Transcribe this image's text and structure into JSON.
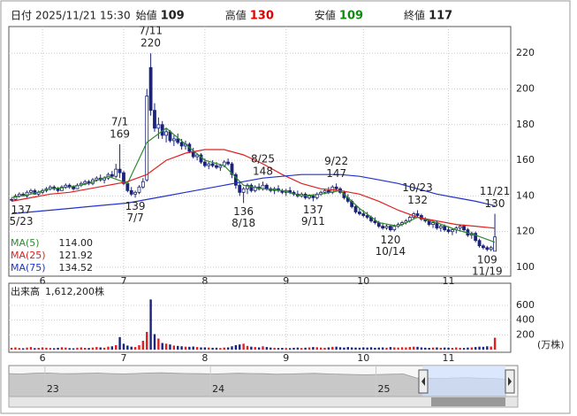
{
  "header": {
    "items": [
      {
        "label": "日付",
        "value": "2025/11/21 15:30"
      },
      {
        "label": "始値",
        "value": 109
      },
      {
        "label": "高値",
        "value": 130,
        "color": "#e00000"
      },
      {
        "label": "安値",
        "value": 109,
        "color": "#108a10"
      },
      {
        "label": "終値",
        "value": 117
      }
    ]
  },
  "chart_data": [
    {
      "type": "candlestick",
      "up_color": "#ffffff",
      "down_color": "#1a237e",
      "edge_color": "#1a237e",
      "ylim": [
        95,
        235
      ],
      "yticks": [
        100,
        120,
        140,
        160,
        180,
        200,
        220
      ],
      "grid": true,
      "xlim": [
        -0.7,
        129.1
      ],
      "xticks": [
        {
          "value": 8,
          "label": "6"
        },
        {
          "value": 29,
          "label": "7"
        },
        {
          "value": 50,
          "label": "8"
        },
        {
          "value": 71,
          "label": "9"
        },
        {
          "value": 91,
          "label": "10"
        },
        {
          "value": 113,
          "label": "11"
        }
      ],
      "ohlc": [
        [
          138,
          139,
          137,
          138
        ],
        [
          138,
          141,
          137.5,
          140
        ],
        [
          140,
          142,
          139,
          141
        ],
        [
          141,
          142,
          140,
          140
        ],
        [
          140,
          143,
          139,
          142
        ],
        [
          142,
          144,
          141,
          143
        ],
        [
          143,
          144,
          141,
          141
        ],
        [
          141,
          143,
          140,
          142
        ],
        [
          142,
          144,
          141,
          143
        ],
        [
          143,
          145,
          142,
          144
        ],
        [
          144,
          146,
          143,
          145
        ],
        [
          145,
          146,
          143,
          144
        ],
        [
          144,
          145,
          142,
          143
        ],
        [
          143,
          146,
          143,
          145
        ],
        [
          145,
          147,
          144,
          146
        ],
        [
          146,
          147,
          144,
          145
        ],
        [
          145,
          146,
          143,
          144
        ],
        [
          144,
          147,
          144,
          146
        ],
        [
          146,
          148,
          145,
          147
        ],
        [
          147,
          149,
          146,
          148
        ],
        [
          148,
          149,
          146,
          147
        ],
        [
          147,
          150,
          146,
          149
        ],
        [
          149,
          151,
          148,
          150
        ],
        [
          150,
          152,
          148,
          149
        ],
        [
          149,
          151,
          147,
          150
        ],
        [
          150,
          153,
          149,
          152
        ],
        [
          152,
          154,
          150,
          151
        ],
        [
          151,
          158,
          150,
          155
        ],
        [
          155,
          169,
          150,
          153
        ],
        [
          153,
          154,
          146,
          147
        ],
        [
          147,
          148,
          142,
          143
        ],
        [
          143,
          145,
          140,
          141
        ],
        [
          141,
          143,
          139,
          142
        ],
        [
          142,
          146,
          141,
          145
        ],
        [
          145,
          150,
          144,
          148
        ],
        [
          149,
          200,
          148,
          196
        ],
        [
          212,
          220,
          185,
          188
        ],
        [
          188,
          192,
          176,
          178
        ],
        [
          178,
          184,
          172,
          180
        ],
        [
          180,
          182,
          172,
          174
        ],
        [
          174,
          178,
          170,
          176
        ],
        [
          176,
          177,
          170,
          171
        ],
        [
          171,
          174,
          168,
          172
        ],
        [
          172,
          175,
          169,
          170
        ],
        [
          170,
          172,
          166,
          168
        ],
        [
          168,
          171,
          166,
          169
        ],
        [
          169,
          170,
          164,
          165
        ],
        [
          165,
          167,
          161,
          162
        ],
        [
          162,
          164,
          160,
          163
        ],
        [
          163,
          164,
          158,
          159
        ],
        [
          159,
          161,
          156,
          157
        ],
        [
          157,
          159,
          155,
          158
        ],
        [
          158,
          160,
          156,
          157
        ],
        [
          157,
          159,
          155,
          156
        ],
        [
          156,
          158,
          154,
          157
        ],
        [
          157,
          160,
          156,
          159
        ],
        [
          159,
          161,
          157,
          158
        ],
        [
          158,
          159,
          150,
          152
        ],
        [
          152,
          153,
          144,
          146
        ],
        [
          146,
          148,
          140,
          142
        ],
        [
          142,
          145,
          136,
          144
        ],
        [
          144,
          147,
          141,
          146
        ],
        [
          146,
          147,
          142,
          143
        ],
        [
          143,
          146,
          142,
          145
        ],
        [
          145,
          147,
          143,
          144
        ],
        [
          144,
          148,
          143,
          146
        ],
        [
          146,
          147,
          143,
          144
        ],
        [
          144,
          145,
          142,
          143
        ],
        [
          143,
          145,
          141,
          144
        ],
        [
          144,
          146,
          142,
          143
        ],
        [
          143,
          144,
          141,
          142
        ],
        [
          142,
          144,
          140,
          143
        ],
        [
          143,
          145,
          141,
          142
        ],
        [
          142,
          143,
          140,
          141
        ],
        [
          141,
          143,
          139,
          140
        ],
        [
          140,
          142,
          139,
          141
        ],
        [
          141,
          142,
          138,
          139
        ],
        [
          139,
          141,
          138,
          140
        ],
        [
          140,
          141,
          137,
          139
        ],
        [
          139,
          142,
          138,
          141
        ],
        [
          141,
          143,
          140,
          142
        ],
        [
          142,
          144,
          141,
          143
        ],
        [
          143,
          145,
          141,
          142
        ],
        [
          142,
          146,
          141,
          145
        ],
        [
          145,
          147,
          143,
          144
        ],
        [
          144,
          145,
          141,
          142
        ],
        [
          142,
          143,
          138,
          139
        ],
        [
          139,
          141,
          136,
          137
        ],
        [
          137,
          138,
          133,
          134
        ],
        [
          134,
          135,
          130,
          131
        ],
        [
          131,
          133,
          129,
          130
        ],
        [
          130,
          132,
          128,
          129
        ],
        [
          129,
          131,
          127,
          128
        ],
        [
          128,
          129,
          125,
          126
        ],
        [
          126,
          128,
          124,
          125
        ],
        [
          125,
          126,
          122,
          123
        ],
        [
          123,
          125,
          121,
          122
        ],
        [
          122,
          124,
          121,
          123
        ],
        [
          123,
          124,
          120,
          121
        ],
        [
          121,
          124,
          120,
          123
        ],
        [
          123,
          125,
          122,
          124
        ],
        [
          124,
          126,
          123,
          125
        ],
        [
          125,
          127,
          124,
          126
        ],
        [
          126,
          129,
          125,
          128
        ],
        [
          128,
          131,
          127,
          130
        ],
        [
          130,
          132,
          128,
          129
        ],
        [
          129,
          130,
          126,
          127
        ],
        [
          127,
          128,
          125,
          126
        ],
        [
          126,
          127,
          123,
          124
        ],
        [
          124,
          126,
          122,
          125
        ],
        [
          125,
          126,
          121,
          122
        ],
        [
          122,
          124,
          120,
          123
        ],
        [
          123,
          124,
          120,
          121
        ],
        [
          121,
          123,
          119,
          120
        ],
        [
          120,
          122,
          118,
          121
        ],
        [
          121,
          123,
          119,
          122
        ],
        [
          122,
          124,
          120,
          123
        ],
        [
          123,
          124,
          120,
          121
        ],
        [
          121,
          122,
          117,
          118
        ],
        [
          118,
          120,
          116,
          119
        ],
        [
          119,
          120,
          114,
          115
        ],
        [
          115,
          116,
          111,
          112
        ],
        [
          112,
          113,
          110,
          111
        ],
        [
          111,
          112,
          109,
          110
        ],
        [
          110,
          112,
          109,
          111
        ],
        [
          109,
          130,
          109,
          117
        ]
      ],
      "series": [
        {
          "name": "MA(5)",
          "color": "#2e8b2e",
          "current": "114.00",
          "x": [
            0,
            5,
            10,
            15,
            20,
            25,
            30,
            35,
            40,
            45,
            50,
            55,
            60,
            65,
            70,
            75,
            80,
            85,
            90,
            95,
            100,
            105,
            110,
            115,
            120,
            125
          ],
          "values": [
            139,
            141,
            144,
            145,
            147,
            151,
            147,
            170,
            178,
            169,
            160,
            157,
            146,
            144,
            143,
            140,
            141,
            143,
            133,
            125,
            123,
            128,
            125,
            121,
            118,
            114
          ]
        },
        {
          "name": "MA(25)",
          "color": "#e02020",
          "current": "121.92",
          "x": [
            0,
            5,
            10,
            15,
            20,
            25,
            30,
            35,
            40,
            45,
            50,
            55,
            60,
            65,
            70,
            75,
            80,
            85,
            90,
            95,
            100,
            105,
            110,
            115,
            120,
            125
          ],
          "values": [
            137,
            139,
            141,
            142,
            144,
            146,
            148,
            152,
            160,
            164,
            166,
            166,
            163,
            158,
            152,
            147,
            144,
            143,
            141,
            137,
            132,
            128,
            126,
            124,
            123,
            121.92
          ]
        },
        {
          "name": "MA(75)",
          "color": "#2233cc",
          "current": "134.52",
          "x": [
            0,
            5,
            10,
            15,
            20,
            25,
            30,
            35,
            40,
            45,
            50,
            55,
            60,
            65,
            70,
            75,
            80,
            85,
            90,
            95,
            100,
            105,
            110,
            115,
            120,
            125
          ],
          "values": [
            130,
            131,
            132,
            133,
            134,
            135,
            136,
            138,
            140,
            142,
            144,
            146,
            148,
            150,
            151,
            152,
            152,
            152,
            151,
            149,
            147,
            144,
            141,
            139,
            137,
            134.52
          ]
        }
      ],
      "annotations": [
        {
          "date": "5/23",
          "value": 137,
          "x": 0
        },
        {
          "date": "7/1",
          "value": 169,
          "x": 28
        },
        {
          "date": "7/7",
          "value": 139,
          "x": 32
        },
        {
          "date": "7/11",
          "value": 220,
          "x": 36
        },
        {
          "date": "8/18",
          "value": 136,
          "x": 60
        },
        {
          "date": "8/25",
          "value": 148,
          "x": 65
        },
        {
          "date": "9/11",
          "value": 137,
          "x": 78
        },
        {
          "date": "9/22",
          "value": 147,
          "x": 84
        },
        {
          "date": "10/14",
          "value": 120,
          "x": 98
        },
        {
          "date": "10/23",
          "value": 132,
          "x": 105
        },
        {
          "date": "11/19",
          "value": 109,
          "x": 123
        },
        {
          "date": "11/21",
          "value": 130,
          "x": 125
        }
      ]
    },
    {
      "type": "bar",
      "title": "出来高",
      "subtitle": "1,612,200株",
      "unit": "(万株)",
      "up_color": "#e02020",
      "down_color": "#1a237e",
      "ylim": [
        0,
        900
      ],
      "yticks": [
        200,
        400,
        600
      ],
      "xlim": [
        -0.7,
        129.1
      ],
      "xticks": [
        {
          "value": 8,
          "label": "6"
        },
        {
          "value": 29,
          "label": "7"
        },
        {
          "value": 50,
          "label": "8"
        },
        {
          "value": 71,
          "label": "9"
        },
        {
          "value": 91,
          "label": "10"
        },
        {
          "value": 113,
          "label": "11"
        }
      ],
      "values": [
        25,
        30,
        22,
        18,
        28,
        35,
        20,
        24,
        30,
        26,
        22,
        19,
        25,
        32,
        28,
        20,
        18,
        26,
        30,
        24,
        22,
        28,
        35,
        30,
        26,
        40,
        45,
        60,
        170,
        80,
        55,
        40,
        35,
        60,
        120,
        240,
        680,
        210,
        150,
        90,
        80,
        70,
        55,
        50,
        45,
        40,
        38,
        42,
        35,
        30,
        30,
        28,
        25,
        26,
        22,
        28,
        30,
        45,
        60,
        70,
        80,
        50,
        40,
        35,
        30,
        45,
        35,
        28,
        25,
        22,
        24,
        22,
        20,
        25,
        28,
        22,
        26,
        30,
        35,
        32,
        28,
        25,
        30,
        38,
        40,
        32,
        28,
        35,
        30,
        28,
        26,
        30,
        28,
        32,
        25,
        28,
        30,
        26,
        35,
        30,
        28,
        32,
        30,
        35,
        40,
        38,
        30,
        26,
        24,
        28,
        30,
        25,
        28,
        26,
        24,
        30,
        25,
        22,
        28,
        30,
        35,
        40,
        38,
        45,
        42,
        161.22
      ]
    },
    {
      "type": "area",
      "color": "#c8c8c8",
      "ylim": [
        0,
        250
      ],
      "xlim": [
        0,
        39
      ],
      "xticks": [
        {
          "value": 2,
          "label": "23"
        },
        {
          "value": 15,
          "label": "24"
        },
        {
          "value": 28,
          "label": "25"
        }
      ],
      "values": [
        185,
        182,
        188,
        190,
        186,
        184,
        187,
        189,
        185,
        183,
        186,
        190,
        192,
        188,
        186,
        184,
        182,
        185,
        188,
        186,
        184,
        180,
        182,
        185,
        187,
        183,
        180,
        178,
        176,
        178,
        180,
        182,
        150,
        148,
        145,
        150,
        152,
        148,
        146,
        140
      ]
    }
  ]
}
